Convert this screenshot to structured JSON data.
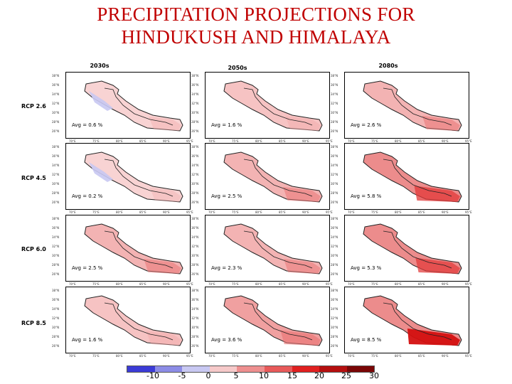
{
  "title_lines": [
    "PRECIPITATION PROJECTIONS FOR",
    "HINDUKUSH AND HIMALAYA"
  ],
  "chart_data": {
    "type": "heatmap",
    "title": "PRECIPITATION PROJECTIONS FOR HINDUKUSH AND HIMALAYA",
    "columns": [
      "2030s",
      "2050s",
      "2080s"
    ],
    "rows": [
      "RCP 2.6",
      "RCP 4.5",
      "RCP 6.0",
      "RCP 8.5"
    ],
    "avg_labels": [
      [
        "Avg = 0.6 %",
        "Avg = 1.6 %",
        "Avg = 2.6 %"
      ],
      [
        "Avg = 0.2 %",
        "Avg = 2.5 %",
        "Avg = 5.8 %"
      ],
      [
        "Avg = 2.5 %",
        "Avg = 2.3 %",
        "Avg = 5.3 %"
      ],
      [
        "Avg = 1.6 %",
        "Avg = 3.6 %",
        "Avg = 8.5 %"
      ]
    ],
    "avg_values": [
      [
        0.6,
        1.6,
        2.6
      ],
      [
        0.2,
        2.5,
        5.8
      ],
      [
        2.5,
        2.3,
        5.3
      ],
      [
        1.6,
        3.6,
        8.5
      ]
    ],
    "lat_ticks": [
      "38°N",
      "36°N",
      "34°N",
      "32°N",
      "30°N",
      "28°N",
      "26°N"
    ],
    "lon_ticks": [
      "70°E",
      "75°E",
      "80°E",
      "85°E",
      "90°E",
      "95°E"
    ],
    "unit": "%",
    "colorbar": {
      "tick_labels": [
        "-10",
        "-5",
        "0",
        "5",
        "10",
        "15",
        "20",
        "25",
        "30"
      ],
      "colors": [
        "#3b3bd6",
        "#8c8ce6",
        "#c8c8f2",
        "#f6c9c9",
        "#ee8f8f",
        "#e85a5a",
        "#e02020",
        "#b50f0f",
        "#7a0606"
      ]
    }
  }
}
